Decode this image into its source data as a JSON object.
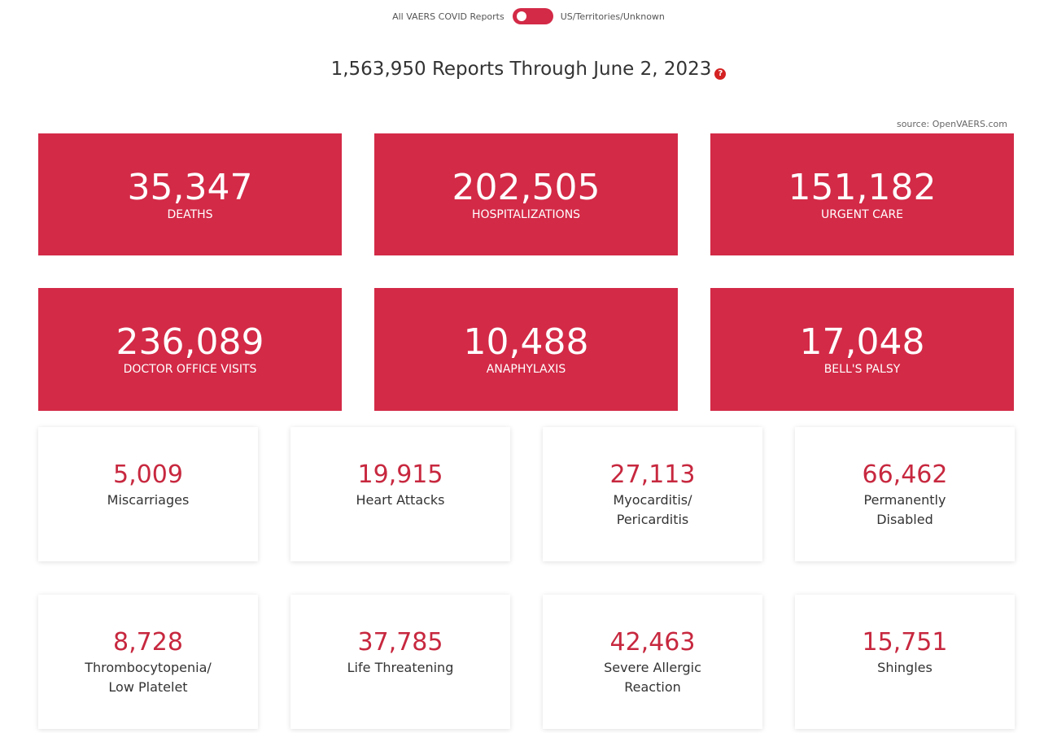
{
  "toggle": {
    "left_label": "All VAERS COVID Reports",
    "right_label": "US/Territories/Unknown"
  },
  "headline": {
    "text": "1,563,950 Reports Through June 2, 2023",
    "help_icon": "question-icon",
    "help_glyph": "?"
  },
  "source": "source: OpenVAERS.com",
  "colors": {
    "accent": "#d32a47",
    "number_red": "#c7283f",
    "help_red": "#d42222"
  },
  "primary_stats": [
    {
      "value": "35,347",
      "label": "DEATHS"
    },
    {
      "value": "202,505",
      "label": "HOSPITALIZATIONS"
    },
    {
      "value": "151,182",
      "label": "URGENT CARE"
    },
    {
      "value": "236,089",
      "label": "DOCTOR OFFICE VISITS"
    },
    {
      "value": "10,488",
      "label": "ANAPHYLAXIS"
    },
    {
      "value": "17,048",
      "label": "BELL'S PALSY"
    }
  ],
  "secondary_stats": [
    {
      "value": "5,009",
      "label_lines": [
        "Miscarriages"
      ]
    },
    {
      "value": "19,915",
      "label_lines": [
        "Heart Attacks"
      ]
    },
    {
      "value": "27,113",
      "label_lines": [
        "Myocarditis/",
        "Pericarditis"
      ]
    },
    {
      "value": "66,462",
      "label_lines": [
        "Permanently",
        "Disabled"
      ]
    },
    {
      "value": "8,728",
      "label_lines": [
        "Thrombocytopenia/",
        "Low Platelet"
      ]
    },
    {
      "value": "37,785",
      "label_lines": [
        "Life Threatening"
      ]
    },
    {
      "value": "42,463",
      "label_lines": [
        "Severe Allergic",
        "Reaction"
      ]
    },
    {
      "value": "15,751",
      "label_lines": [
        "Shingles"
      ]
    }
  ]
}
